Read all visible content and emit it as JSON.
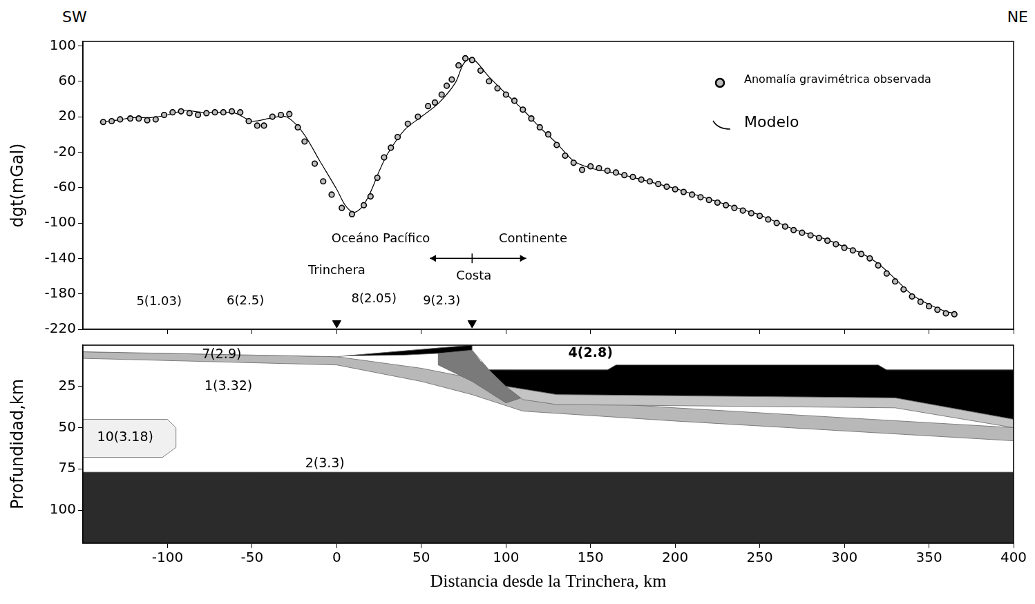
{
  "page": {
    "left_label": "SW",
    "right_label": "NE"
  },
  "chart_data": [
    {
      "type": "scatter",
      "y_label": "dgt(mGal)",
      "xlim": [
        -150,
        400
      ],
      "xticks": [
        -100,
        -50,
        0,
        50,
        100,
        150,
        200,
        250,
        300,
        350,
        400
      ],
      "ylim": [
        -220,
        105
      ],
      "yticks": [
        100,
        60,
        20,
        -20,
        -60,
        -100,
        -140,
        -180,
        -220
      ],
      "tick_labels": "y",
      "grid": false,
      "legend": "top-right",
      "series": [
        {
          "name": "Anomalía gravimétrica observada",
          "type": "scatter",
          "marker": "circle",
          "color": "#bdbdbd",
          "x": [
            -138,
            -133,
            -128,
            -122,
            -117,
            -112,
            -107,
            -102,
            -97,
            -92,
            -87,
            -82,
            -77,
            -72,
            -67,
            -62,
            -57,
            -52,
            -47,
            -43,
            -38,
            -33,
            -28,
            -23,
            -19,
            -13,
            -8,
            -3,
            3,
            9,
            16,
            20,
            24,
            28,
            32,
            36,
            42,
            48,
            54,
            58,
            62,
            65,
            68,
            72,
            76,
            80,
            85,
            90,
            95,
            100,
            105,
            110,
            115,
            120,
            125,
            130,
            135,
            140,
            145,
            150,
            155,
            160,
            165,
            170,
            175,
            180,
            185,
            190,
            195,
            200,
            205,
            210,
            215,
            220,
            225,
            230,
            235,
            240,
            245,
            250,
            255,
            260,
            265,
            270,
            275,
            280,
            285,
            290,
            295,
            300,
            305,
            310,
            315,
            320,
            325,
            330,
            335,
            340,
            345,
            350,
            355,
            360,
            365
          ],
          "values": [
            14,
            15,
            17,
            18,
            18,
            16,
            17,
            22,
            25,
            26,
            24,
            22,
            24,
            25,
            25,
            26,
            25,
            15,
            10,
            10,
            20,
            22,
            23,
            8,
            -8,
            -33,
            -53,
            -68,
            -83,
            -90,
            -80,
            -70,
            -49,
            -26,
            -15,
            -3,
            12,
            20,
            32,
            36,
            45,
            55,
            62,
            78,
            86,
            84,
            72,
            60,
            52,
            45,
            38,
            28,
            18,
            8,
            0,
            -12,
            -24,
            -32,
            -40,
            -36,
            -38,
            -41,
            -43,
            -46,
            -48,
            -51,
            -53,
            -56,
            -59,
            -62,
            -65,
            -68,
            -71,
            -74,
            -77,
            -80,
            -83,
            -86,
            -89,
            -92,
            -96,
            -100,
            -104,
            -108,
            -111,
            -114,
            -117,
            -120,
            -124,
            -128,
            -131,
            -135,
            -140,
            -148,
            -157,
            -166,
            -175,
            -183,
            -189,
            -194,
            -198,
            -202,
            -203
          ]
        },
        {
          "name": "Modelo",
          "type": "line",
          "line_style": "solid",
          "color": "#000000",
          "x": [
            -140,
            -130,
            -120,
            -110,
            -100,
            -90,
            -80,
            -70,
            -60,
            -50,
            -40,
            -30,
            -20,
            -10,
            0,
            5,
            10,
            15,
            20,
            25,
            30,
            40,
            50,
            60,
            70,
            75,
            80,
            90,
            100,
            110,
            120,
            130,
            140,
            150,
            160,
            170,
            180,
            190,
            200,
            210,
            220,
            230,
            240,
            250,
            260,
            270,
            280,
            290,
            300,
            310,
            320,
            330,
            340,
            350,
            360,
            365
          ],
          "values": [
            14,
            16,
            19,
            19,
            22,
            27,
            25,
            25,
            24,
            15,
            18,
            20,
            2,
            -30,
            -62,
            -80,
            -88,
            -82,
            -65,
            -42,
            -22,
            5,
            20,
            35,
            58,
            80,
            86,
            65,
            46,
            28,
            8,
            -10,
            -30,
            -38,
            -42,
            -46,
            -51,
            -56,
            -61,
            -67,
            -73,
            -79,
            -85,
            -91,
            -99,
            -107,
            -113,
            -119,
            -127,
            -134,
            -146,
            -163,
            -181,
            -192,
            -200,
            -202
          ]
        }
      ],
      "markers": [
        {
          "x": 0,
          "y": -213,
          "marker": "triangle-down",
          "color": "#000000"
        },
        {
          "x": 80,
          "y": -213,
          "marker": "triangle-down",
          "color": "#000000"
        }
      ],
      "annotations": [
        {
          "text": "Oceáno Pacífico",
          "x": 26,
          "y": -118
        },
        {
          "text": "Continente",
          "x": 116,
          "y": -118
        },
        {
          "text": "Trinchera",
          "x": 0,
          "y": -154
        },
        {
          "text": "Costa",
          "x": 81,
          "y": -160
        },
        {
          "text": "5(1.03)",
          "x": -105,
          "y": -189
        },
        {
          "text": "6(2.5)",
          "x": -54,
          "y": -188
        },
        {
          "text": "8(2.05)",
          "x": 22,
          "y": -186
        },
        {
          "text": "9(2.3)",
          "x": 62,
          "y": -188
        }
      ],
      "range_arrow": {
        "from": 55,
        "to": 112,
        "center": 80,
        "y": -140
      }
    },
    {
      "type": "cross_section",
      "x_label": "Distancia desde la Trinchera, km",
      "y_label": "Profundidad,km",
      "xlim": [
        -150,
        400
      ],
      "xticks": [
        -100,
        -50,
        0,
        50,
        100,
        150,
        200,
        250,
        300,
        350,
        400
      ],
      "ylim": [
        0,
        120
      ],
      "yticks": [
        25,
        50,
        75,
        100
      ],
      "grid": false,
      "layers": [
        {
          "label": "1(3.32)",
          "label_x": -64,
          "label_y": 25,
          "color": "#ffffff",
          "x": [
            -150,
            400,
            400,
            -150
          ],
          "y": [
            0,
            0,
            120,
            120
          ]
        },
        {
          "label": "2(3.3)",
          "label_x": -7,
          "label_y": 72,
          "color": "#2b2b2b",
          "x": [
            -150,
            400,
            400,
            -150
          ],
          "y": [
            77,
            77,
            120,
            120
          ]
        },
        {
          "label": "10(3.18)",
          "label_x": -125,
          "label_y": 56,
          "color": "#f0f0f0",
          "x": [
            -150,
            -100,
            -95,
            -95,
            -103,
            -150
          ],
          "y": [
            45,
            45,
            50,
            62,
            68,
            68
          ]
        },
        {
          "label": "7(2.9)",
          "label_x": -68,
          "label_y": 6,
          "color": "#b8b8b8",
          "x": [
            -150,
            0,
            50,
            80,
            110,
            200,
            300,
            400,
            400,
            300,
            200,
            110,
            80,
            50,
            0,
            -150
          ],
          "y": [
            4,
            7,
            14,
            20,
            32,
            38,
            44,
            50,
            58,
            52,
            46,
            40,
            30,
            22,
            12,
            8
          ]
        },
        {
          "label": "5(1.03)",
          "color": "#ffffff",
          "x": [
            -150,
            80,
            0,
            -150
          ],
          "y": [
            0,
            0,
            7,
            4
          ]
        },
        {
          "label": "8(2.05)",
          "color": "#000000",
          "x": [
            5,
            80,
            80,
            40
          ],
          "y": [
            6.5,
            0,
            4,
            6
          ]
        },
        {
          "label": "9(2.3)",
          "color": "#7a7a7a",
          "x": [
            60,
            80,
            85,
            100,
            115,
            100,
            80,
            60
          ],
          "y": [
            5,
            3,
            10,
            15,
            30,
            35,
            22,
            12
          ]
        },
        {
          "label": "4(2.8)",
          "label_x": 150,
          "label_y": 5,
          "color": "#ffffff",
          "x": [
            80,
            400,
            400,
            90,
            80
          ],
          "y": [
            0,
            0,
            15,
            15,
            3
          ]
        },
        {
          "color": "#000000",
          "x": [
            90,
            160,
            165,
            320,
            325,
            400,
            400,
            330,
            130,
            100
          ],
          "y": [
            15,
            15,
            12,
            12,
            15,
            15,
            45,
            32,
            30,
            25
          ]
        },
        {
          "color": "#c4c4c4",
          "x": [
            100,
            130,
            330,
            400,
            400,
            330,
            130,
            110
          ],
          "y": [
            25,
            30,
            32,
            45,
            50,
            38,
            36,
            33
          ]
        }
      ]
    }
  ]
}
